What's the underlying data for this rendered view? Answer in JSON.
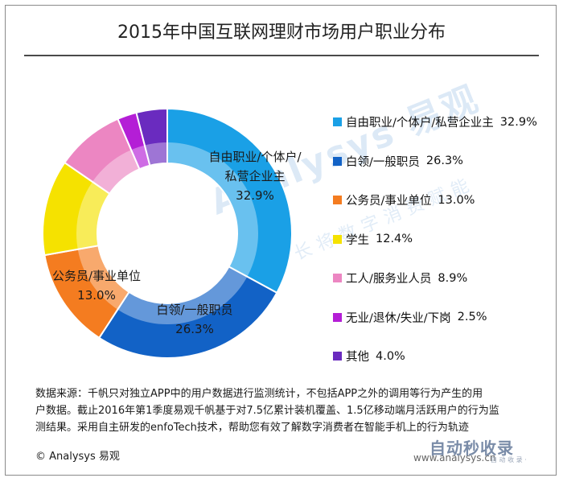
{
  "chart_data": {
    "type": "pie",
    "title": "2015年中国互联网理财市场用户职业分布",
    "slices": [
      {
        "label": "自由职业/个体户/私营企业主",
        "value": 32.9,
        "value_text": "32.9%",
        "color": "#1aa0e6",
        "inner_label_lines": [
          "自由职业/个体户/",
          "私营企业主",
          "32.9%"
        ]
      },
      {
        "label": "白领/一般职员",
        "value": 26.3,
        "value_text": "26.3%",
        "color": "#1262c6",
        "inner_label_lines": [
          "白领/一般职员",
          "26.3%"
        ]
      },
      {
        "label": "公务员/事业单位",
        "value": 13.0,
        "value_text": "13.0%",
        "color": "#f47c20",
        "inner_label_lines": [
          "公务员/事业单位",
          "13.0%"
        ]
      },
      {
        "label": "学生",
        "value": 12.4,
        "value_text": "12.4%",
        "color": "#f5e200",
        "inner_label_lines": []
      },
      {
        "label": "工人/服务业人员",
        "value": 8.9,
        "value_text": "8.9%",
        "color": "#ec86c2",
        "inner_label_lines": []
      },
      {
        "label": "无业/退休/失业/下岗",
        "value": 2.5,
        "value_text": "2.5%",
        "color": "#b41ed6",
        "inner_label_lines": []
      },
      {
        "label": "其他",
        "value": 4.0,
        "value_text": "4.0%",
        "color": "#6a2bbf",
        "inner_label_lines": []
      }
    ],
    "legend_position": "right"
  },
  "source_lines": [
    "数据来源：千帆只对独立APP中的用户数据进行监测统计，不包括APP之外的调用等行为产生的用",
    "户数据。截止2016年第1季度易观千帆基于对7.5亿累计装机覆盖、1.5亿移动端月活跃用户的行为监",
    "测结果。采用自主研发的enfoTech技术，帮助您有效了解数字消费者在智能手机上的行为轨迹"
  ],
  "copyright": "© Analysys 易观",
  "watermark": {
    "main": "Analysys 易观",
    "sub": "长将数字消费赋能"
  },
  "corner_logo": {
    "main": "自动秒收录",
    "sub": "自 动 收 录 ·",
    "url": "www.analysys.cn"
  }
}
